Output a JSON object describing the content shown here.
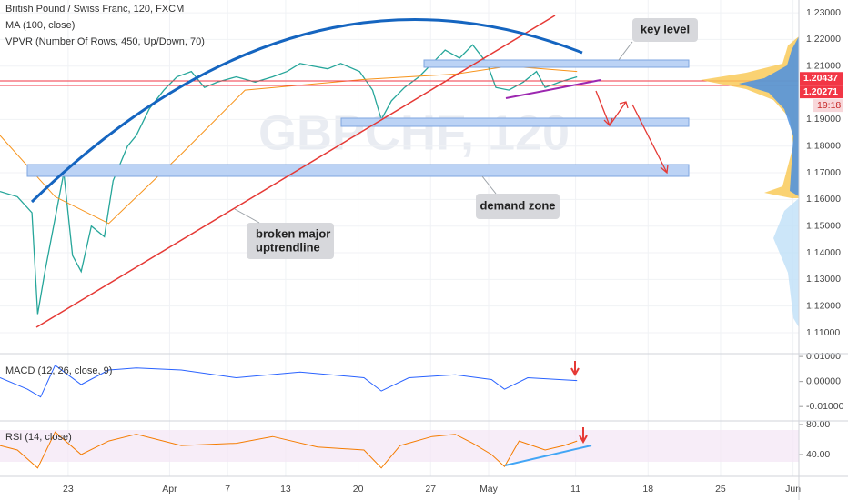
{
  "chart_data": [
    {
      "type": "line",
      "title": "British Pound / Swiss Franc, 120, FXCM",
      "subtitle": "VPVR (Number Of Rows, 450, Up/Down, 70)",
      "watermark": "GBPCHF, 120",
      "xlim": [
        -4.7,
        50.4
      ],
      "xticks": [
        {
          "value": 0,
          "label": "23"
        },
        {
          "value": 7,
          "label": "Apr"
        },
        {
          "value": 11,
          "label": "7"
        },
        {
          "value": 15,
          "label": "13"
        },
        {
          "value": 20,
          "label": "20"
        },
        {
          "value": 25,
          "label": "27"
        },
        {
          "value": 29,
          "label": "May"
        },
        {
          "value": 35,
          "label": "11"
        },
        {
          "value": 40,
          "label": "18"
        },
        {
          "value": 45,
          "label": "25"
        },
        {
          "value": 50,
          "label": "Jun"
        }
      ],
      "ylim": [
        1.1025,
        1.2348
      ],
      "yticks": [
        {
          "value": 1.23,
          "label": "1.23000"
        },
        {
          "value": 1.22,
          "label": "1.22000"
        },
        {
          "value": 1.21,
          "label": "1.21000"
        },
        {
          "value": 1.19,
          "label": "1.19000"
        },
        {
          "value": 1.18,
          "label": "1.18000"
        },
        {
          "value": 1.17,
          "label": "1.17000"
        },
        {
          "value": 1.16,
          "label": "1.16000"
        },
        {
          "value": 1.15,
          "label": "1.15000"
        },
        {
          "value": 1.14,
          "label": "1.14000"
        },
        {
          "value": 1.13,
          "label": "1.13000"
        },
        {
          "value": 1.12,
          "label": "1.12000"
        },
        {
          "value": 1.11,
          "label": "1.11000"
        }
      ],
      "grid": true,
      "series": [
        {
          "color": "#26a69a",
          "x": [
            -4.7,
            -3.5,
            -2.5,
            -2.1,
            -1.6,
            -0.9,
            -0.3,
            0.3,
            0.9,
            1.6,
            2.5,
            3.1,
            4.1,
            4.7,
            5.6,
            6.6,
            7.5,
            8.5,
            9.4,
            10.3,
            11.6,
            12.9,
            14.1,
            15.1,
            16.0,
            16.9,
            17.9,
            18.8,
            20.1,
            21.0,
            21.6,
            22.3,
            23.2,
            24.2,
            25.1,
            26.0,
            27.0,
            27.9,
            28.9,
            29.5,
            30.4,
            31.4,
            32.3,
            32.9,
            33.9,
            35.1
          ],
          "values": [
            1.163,
            1.161,
            1.155,
            1.117,
            1.133,
            1.153,
            1.17,
            1.139,
            1.133,
            1.15,
            1.146,
            1.167,
            1.18,
            1.184,
            1.194,
            1.201,
            1.206,
            1.208,
            1.202,
            1.204,
            1.206,
            1.204,
            1.206,
            1.208,
            1.211,
            1.21,
            1.209,
            1.211,
            1.208,
            1.201,
            1.19,
            1.197,
            1.202,
            1.206,
            1.211,
            1.216,
            1.213,
            1.218,
            1.211,
            1.202,
            1.201,
            1.204,
            1.208,
            1.202,
            1.204,
            1.206
          ]
        },
        {
          "name": "MA (100, close)",
          "color": "#f7931a",
          "x": [
            -4.7,
            -0.9,
            2.8,
            7.8,
            12.2,
            20.4,
            26.7,
            30.4,
            35.1
          ],
          "values": [
            1.184,
            1.161,
            1.151,
            1.177,
            1.201,
            1.205,
            1.207,
            1.21,
            1.208
          ]
        }
      ],
      "price_labels": [
        {
          "value": 1.20437,
          "label": "1.20437",
          "color": "#f23645"
        },
        {
          "value": 1.20271,
          "label": "1.20271",
          "color": "#f23645"
        }
      ],
      "countdown": "19:18",
      "annotations": {
        "key_level": "key level",
        "demand_zone": "demand zone",
        "trendline": [
          "broken major",
          "uptrendline"
        ]
      }
    },
    {
      "type": "line",
      "title": "MACD (12, 26, close, 9)",
      "ylim": [
        -0.01538,
        0.01077
      ],
      "yticks": [
        {
          "value": 0.01,
          "label": "0.01000"
        },
        {
          "value": 0,
          "label": "0.00000"
        },
        {
          "value": -0.01,
          "label": "-0.01000"
        }
      ],
      "series": [
        {
          "color": "#2962ff",
          "x": [
            -4.7,
            -2.8,
            -1.9,
            -0.9,
            0.9,
            2.8,
            4.7,
            7.8,
            11.6,
            16.0,
            20.4,
            21.6,
            23.5,
            26.7,
            29.2,
            30.1,
            31.7,
            35.1
          ],
          "values": [
            0.0015,
            -0.0031,
            -0.0062,
            0.0065,
            -0.0012,
            0.0046,
            0.0054,
            0.0046,
            0.0015,
            0.0038,
            0.0015,
            -0.0038,
            0.0015,
            0.0027,
            0.0008,
            -0.0031,
            0.0015,
            0.0004
          ]
        }
      ]
    },
    {
      "type": "line",
      "title": "RSI (14, close)",
      "ylim": [
        13.3,
        83.6
      ],
      "yticks": [
        {
          "value": 80,
          "label": "80.00"
        },
        {
          "value": 40,
          "label": "40.00"
        }
      ],
      "series": [
        {
          "color": "#f57c00",
          "x": [
            -4.7,
            -3.5,
            -2.1,
            -0.9,
            0.9,
            2.8,
            4.7,
            7.8,
            11.6,
            14.1,
            17.2,
            20.4,
            21.6,
            22.9,
            25.1,
            26.7,
            27.9,
            29.2,
            30.1,
            31.1,
            32.9,
            34.2,
            35.1
          ],
          "values": [
            52,
            46,
            22,
            70,
            40,
            58,
            67,
            52,
            55,
            64,
            50,
            46,
            22,
            52,
            64,
            67,
            55,
            40,
            24,
            58,
            46,
            52,
            58
          ]
        }
      ]
    }
  ]
}
